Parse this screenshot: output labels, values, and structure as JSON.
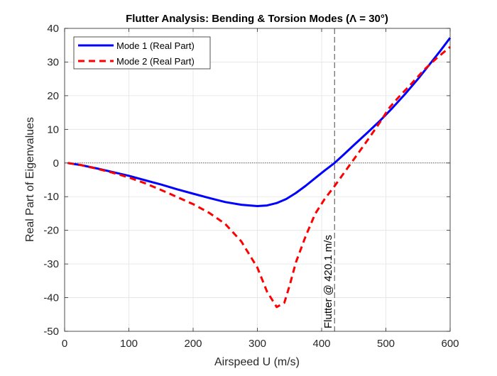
{
  "chart_data": {
    "type": "line",
    "title": "Flutter Analysis: Bending & Torsion Modes (Λ = 30°)",
    "xlabel": "Airspeed U (m/s)",
    "ylabel": "Real Part of Eigenvalues",
    "xlim": [
      0,
      600
    ],
    "ylim": [
      -50,
      40
    ],
    "xticks": [
      0,
      100,
      200,
      300,
      400,
      500,
      600
    ],
    "yticks": [
      -50,
      -40,
      -30,
      -20,
      -10,
      0,
      10,
      20,
      30,
      40
    ],
    "grid": true,
    "legend_position": "top-left",
    "series": [
      {
        "name": "Mode 1 (Real Part)",
        "color": "#0000ff",
        "style": "solid",
        "x": [
          5,
          25,
          50,
          75,
          100,
          125,
          150,
          175,
          200,
          225,
          250,
          275,
          300,
          315,
          330,
          345,
          360,
          375,
          390,
          405,
          420,
          435,
          450,
          470,
          490,
          510,
          530,
          550,
          570,
          585,
          600
        ],
        "y": [
          0,
          -0.6,
          -1.6,
          -2.7,
          -3.8,
          -5.1,
          -6.4,
          -7.8,
          -9.1,
          -10.4,
          -11.6,
          -12.4,
          -12.8,
          -12.6,
          -11.9,
          -10.7,
          -8.9,
          -6.8,
          -4.5,
          -2.2,
          0,
          2.6,
          5.3,
          8.8,
          12.4,
          16.3,
          20.5,
          25,
          29.8,
          33.4,
          37.2
        ]
      },
      {
        "name": "Mode 2 (Real Part)",
        "color": "#ff0000",
        "style": "dashed",
        "x": [
          5,
          25,
          50,
          75,
          100,
          125,
          150,
          175,
          200,
          225,
          250,
          275,
          300,
          315,
          330,
          342,
          350,
          360,
          375,
          390,
          405,
          420,
          435,
          450,
          470,
          490,
          505,
          520,
          540,
          560,
          580,
          600
        ],
        "y": [
          0,
          -0.6,
          -1.7,
          -2.9,
          -4.3,
          -6,
          -8,
          -10.1,
          -12.2,
          -14.8,
          -18.1,
          -23.3,
          -31.1,
          -38.2,
          -42.8,
          -41.5,
          -36.5,
          -29.5,
          -21.8,
          -15.1,
          -10.6,
          -6.9,
          -2.9,
          1.1,
          6.4,
          11.9,
          16.3,
          19.6,
          23.6,
          27.8,
          31.3,
          34.5
        ]
      }
    ],
    "reference_lines": [
      {
        "axis": "y",
        "value": 0,
        "style": "dotted",
        "color": "#333333"
      },
      {
        "axis": "x",
        "value": 420.1,
        "style": "dashed",
        "color": "#333333"
      }
    ],
    "annotations": [
      {
        "text": "Flutter @ 420.1 m/s",
        "x": 410,
        "y": -50,
        "rotation": 90
      }
    ]
  }
}
